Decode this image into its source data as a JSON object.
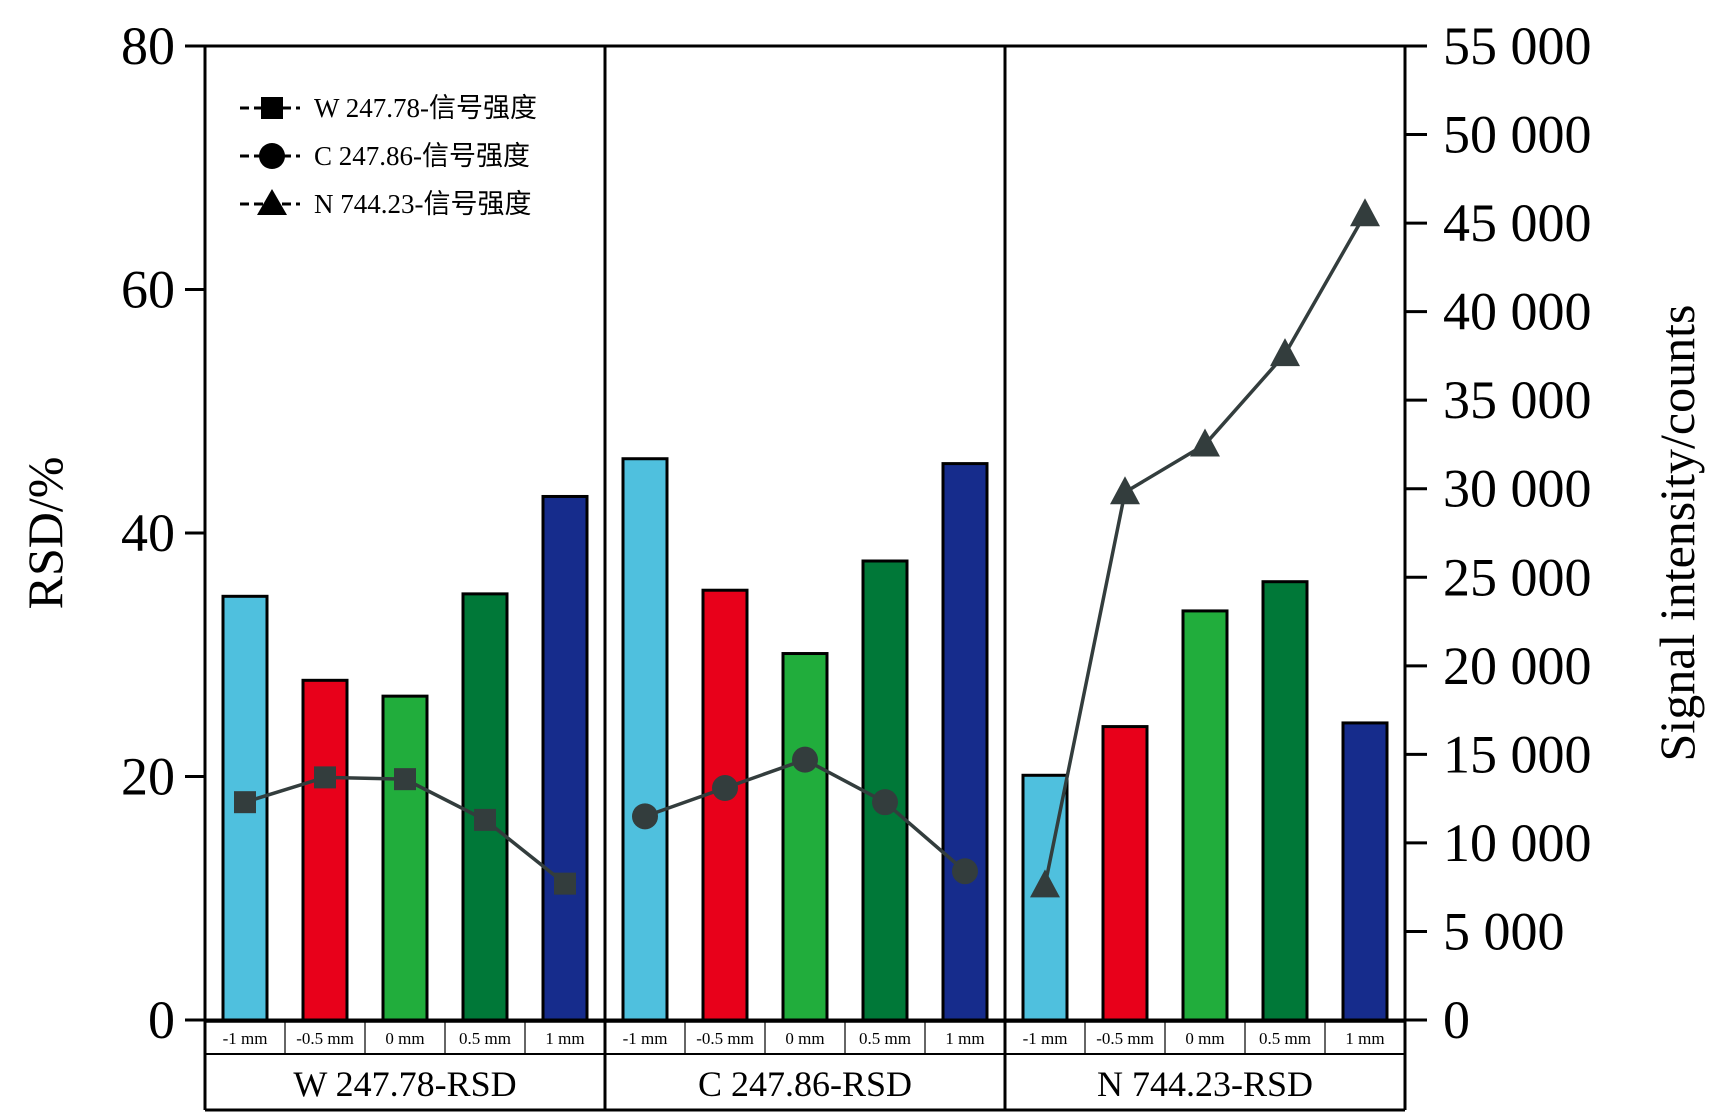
{
  "chart_data": {
    "type": "bar",
    "y_left": {
      "label": "RSD/%",
      "ylim": [
        0,
        80
      ],
      "ticks": [
        0,
        20,
        40,
        60,
        80
      ],
      "tick_labels": [
        "0",
        "20",
        "40",
        "60",
        "80"
      ]
    },
    "y_right": {
      "label": "Signal intensity/counts",
      "ylim": [
        0,
        55000
      ],
      "ticks": [
        0,
        5000,
        10000,
        15000,
        20000,
        25000,
        30000,
        35000,
        40000,
        45000,
        50000,
        55000
      ],
      "tick_labels": [
        "0",
        "5 000",
        "10 000",
        "15 000",
        "20 000",
        "25 000",
        "30 000",
        "35 000",
        "40 000",
        "45 000",
        "50 000",
        "55 000"
      ]
    },
    "categories": [
      "-1 mm",
      "-0.5 mm",
      "0 mm",
      "0.5 mm",
      "1 mm"
    ],
    "bar_colors": [
      "#4fc0de",
      "#e8001a",
      "#21ad3c",
      "#007838",
      "#162c8c"
    ],
    "line_color": "#333d3d",
    "groups": [
      {
        "label": "W 247.78-RSD",
        "rsd": [
          34.8,
          27.9,
          26.6,
          35.0,
          43.0
        ],
        "line_name": "W 247.78-信号强度",
        "marker": "square",
        "signal": [
          12300,
          13700,
          13600,
          11300,
          7700
        ]
      },
      {
        "label": "C 247.86-RSD",
        "rsd": [
          46.1,
          35.3,
          30.1,
          37.7,
          45.7
        ],
        "line_name": "C 247.86-信号强度",
        "marker": "circle",
        "signal": [
          11500,
          13100,
          14700,
          12300,
          8400
        ]
      },
      {
        "label": "N 744.23-RSD",
        "rsd": [
          20.1,
          24.1,
          33.6,
          36.0,
          24.4
        ],
        "line_name": "N 744.23-信号强度",
        "marker": "triangle",
        "signal": [
          7600,
          29800,
          32500,
          37600,
          45500
        ]
      }
    ],
    "legend": {
      "position": "top-left",
      "items": [
        "W 247.78-信号强度",
        "C 247.86-信号强度",
        "N 744.23-信号强度"
      ]
    }
  }
}
